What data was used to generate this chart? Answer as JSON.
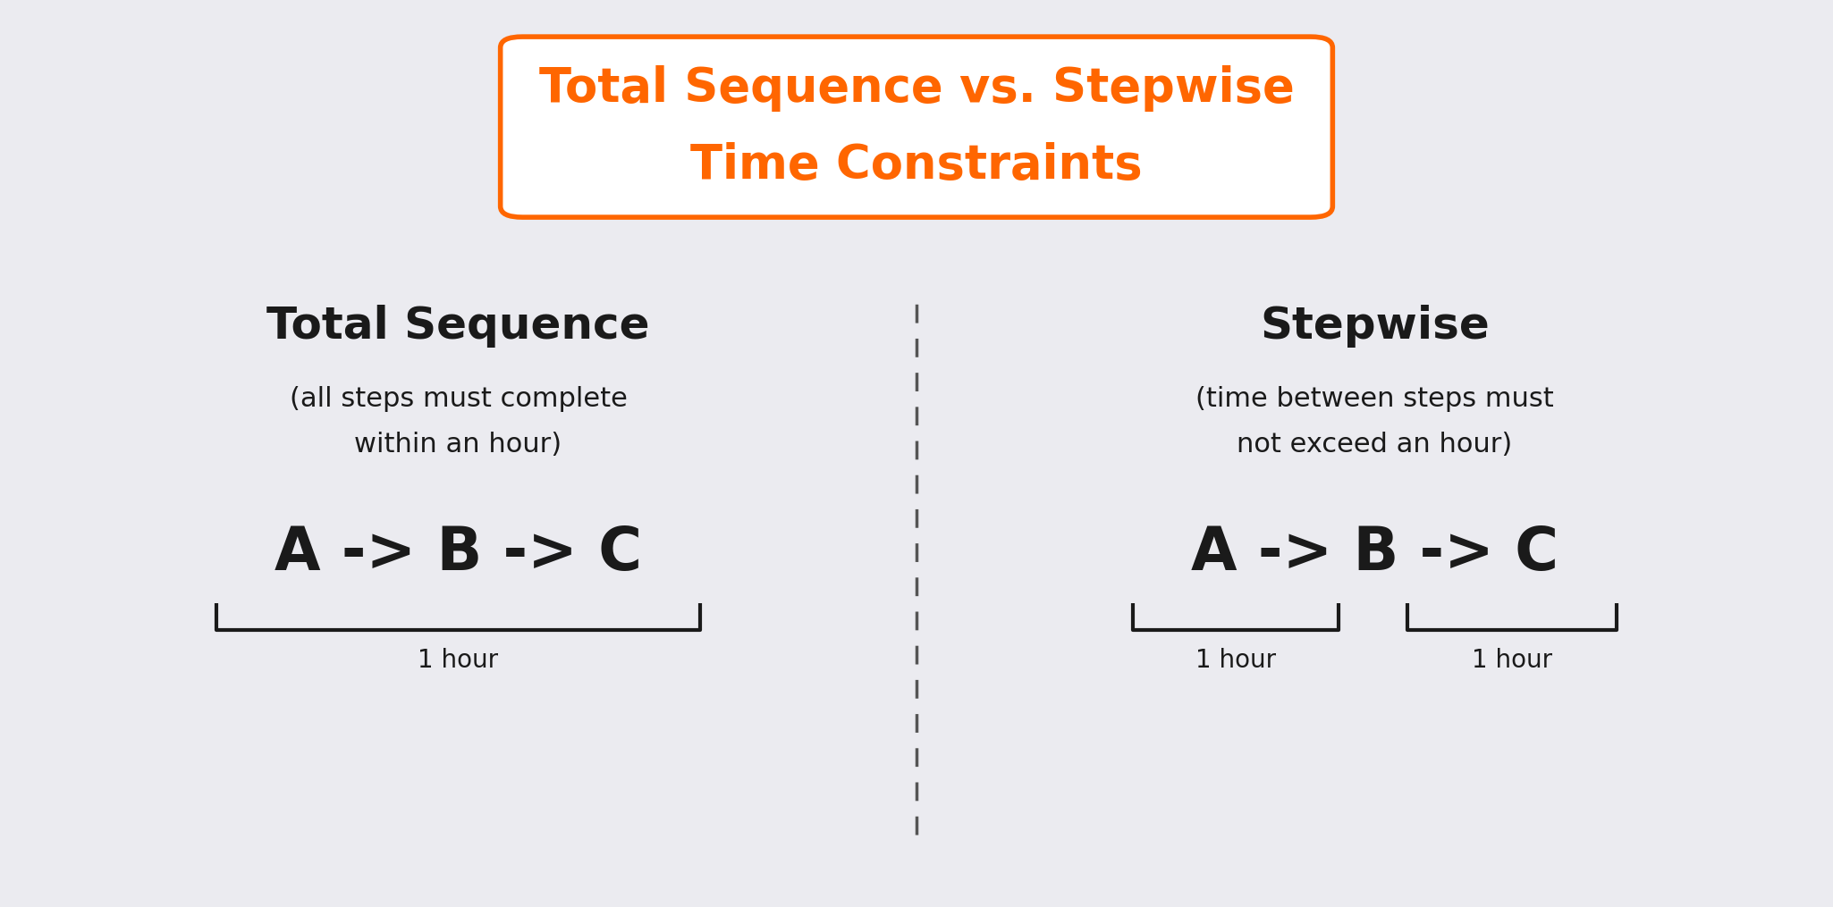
{
  "bg_color": "#ebebf0",
  "title_line1": "Total Sequence vs. Stepwise",
  "title_line2": "Time Constraints",
  "title_color": "#ff6600",
  "title_box_color": "#ff6600",
  "title_box_bg": "#ffffff",
  "divider_color": "#555555",
  "left_title": "Total Sequence",
  "left_subtitle_line1": "(all steps must complete",
  "left_subtitle_line2": "within an hour)",
  "right_title": "Stepwise",
  "right_subtitle_line1": "(time between steps must",
  "right_subtitle_line2": "not exceed an hour)",
  "left_sequence": "A -> B -> C",
  "right_sequence": "A -> B -> C",
  "left_hour_label": "1 hour",
  "right_hour_label1": "1 hour",
  "right_hour_label2": "1 hour",
  "text_color": "#1a1a1a",
  "bracket_color": "#1a1a1a",
  "fig_width": 20.5,
  "fig_height": 10.15,
  "dpi": 100
}
